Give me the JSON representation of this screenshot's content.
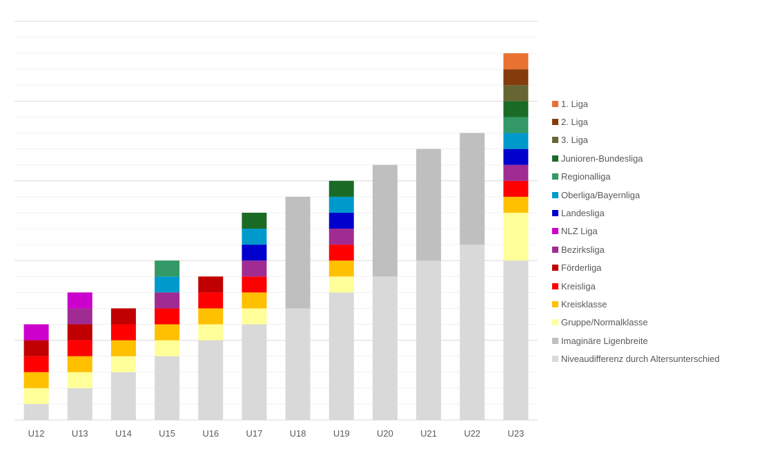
{
  "chart_data": {
    "type": "bar",
    "stacked": true,
    "title": "",
    "xlabel": "",
    "ylabel": "",
    "ylim": [
      0,
      25
    ],
    "y_axis_labels_shown": false,
    "grid": true,
    "major_grid_step": 5,
    "minor_grid_step": 1,
    "legend_position": "right",
    "categories": [
      "U12",
      "U13",
      "U14",
      "U15",
      "U16",
      "U17",
      "U18",
      "U19",
      "U20",
      "U21",
      "U22",
      "U23"
    ],
    "series": [
      {
        "name": "Niveaudifferenz durch Altersunterschied",
        "color": "#d9d9d9",
        "values": [
          1,
          2,
          3,
          4,
          5,
          6,
          7,
          8,
          9,
          10,
          11,
          10
        ]
      },
      {
        "name": "Imaginäre Ligenbreite",
        "color": "#bfbfbf",
        "values": [
          0,
          0,
          0,
          0,
          0,
          0,
          7,
          0,
          7,
          7,
          7,
          0
        ]
      },
      {
        "name": "Gruppe/Normalklasse",
        "color": "#ffff99",
        "values": [
          1,
          1,
          1,
          1,
          1,
          1,
          0,
          1,
          0,
          0,
          0,
          3
        ]
      },
      {
        "name": "Kreisklasse",
        "color": "#ffc000",
        "values": [
          1,
          1,
          1,
          1,
          1,
          1,
          0,
          1,
          0,
          0,
          0,
          1
        ]
      },
      {
        "name": "Kreisliga",
        "color": "#ff0000",
        "values": [
          1,
          1,
          1,
          1,
          1,
          1,
          0,
          1,
          0,
          0,
          0,
          1
        ]
      },
      {
        "name": "Förderliga",
        "color": "#c00000",
        "values": [
          1,
          1,
          1,
          0,
          1,
          0,
          0,
          0,
          0,
          0,
          0,
          0
        ]
      },
      {
        "name": "Bezirksliga",
        "color": "#a02b93",
        "values": [
          0,
          1,
          0,
          1,
          0,
          1,
          0,
          1,
          0,
          0,
          0,
          1
        ]
      },
      {
        "name": "NLZ Liga",
        "color": "#cc00cc",
        "values": [
          1,
          1,
          0,
          0,
          0,
          0,
          0,
          0,
          0,
          0,
          0,
          0
        ]
      },
      {
        "name": "Landesliga",
        "color": "#0000cc",
        "values": [
          0,
          0,
          0,
          0,
          0,
          1,
          0,
          1,
          0,
          0,
          0,
          1
        ]
      },
      {
        "name": "Oberliga/Bayernliga",
        "color": "#0099cc",
        "values": [
          0,
          0,
          0,
          1,
          0,
          1,
          0,
          1,
          0,
          0,
          0,
          1
        ]
      },
      {
        "name": "Regionalliga",
        "color": "#339966",
        "values": [
          0,
          0,
          0,
          1,
          0,
          0,
          0,
          0,
          0,
          0,
          0,
          1
        ]
      },
      {
        "name": "Junioren-Bundesliga",
        "color": "#1a6b26",
        "values": [
          0,
          0,
          0,
          0,
          0,
          1,
          0,
          1,
          0,
          0,
          0,
          1
        ]
      },
      {
        "name": "3. Liga",
        "color": "#666633",
        "values": [
          0,
          0,
          0,
          0,
          0,
          0,
          0,
          0,
          0,
          0,
          0,
          1
        ]
      },
      {
        "name": "2. Liga",
        "color": "#843c0c",
        "values": [
          0,
          0,
          0,
          0,
          0,
          0,
          0,
          0,
          0,
          0,
          0,
          1
        ]
      },
      {
        "name": "1. Liga",
        "color": "#e97132",
        "values": [
          0,
          0,
          0,
          0,
          0,
          0,
          0,
          0,
          0,
          0,
          0,
          1
        ]
      }
    ],
    "legend_order": [
      "1. Liga",
      "2. Liga",
      "3. Liga",
      "Junioren-Bundesliga",
      "Regionalliga",
      "Oberliga/Bayernliga",
      "Landesliga",
      "NLZ Liga",
      "Bezirksliga",
      "Förderliga",
      "Kreisliga",
      "Kreisklasse",
      "Gruppe/Normalklasse",
      "Imaginäre Ligenbreite",
      "Niveaudifferenz durch Altersunterschied"
    ]
  }
}
